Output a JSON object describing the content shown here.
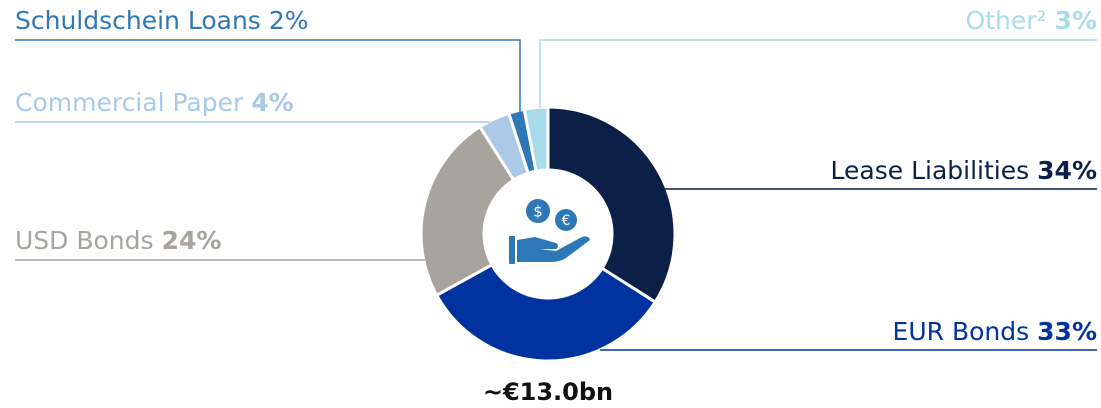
{
  "chart_data": {
    "type": "pie",
    "categories": [
      "Lease Liabilities",
      "EUR Bonds",
      "USD Bonds",
      "Commercial Paper",
      "Schuldschein Loans",
      "Other²"
    ],
    "values": [
      34,
      33,
      24,
      4,
      2,
      3
    ],
    "value_labels": [
      "34%",
      "33%",
      "24%",
      "4%",
      "2%",
      "3%"
    ],
    "colors": [
      "#0b1f47",
      "#0033a0",
      "#a8a39d",
      "#a9c9e6",
      "#2f78b8",
      "#a8dcea"
    ],
    "total_label": "~€13.0bn"
  }
}
